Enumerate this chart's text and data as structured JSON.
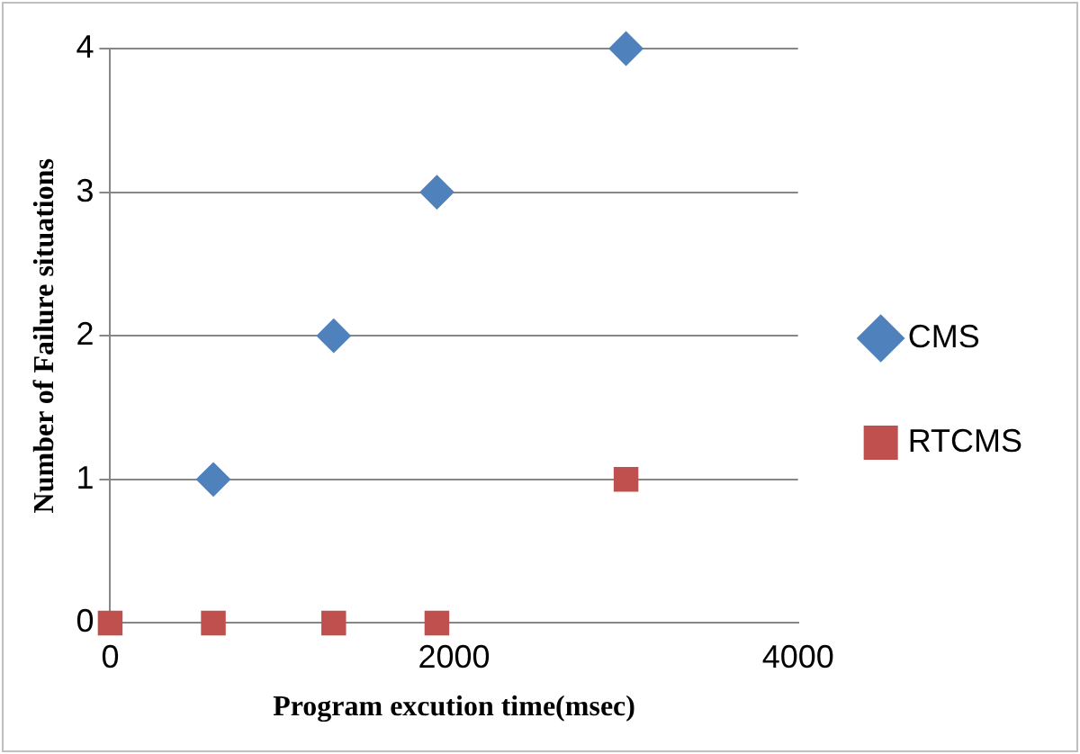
{
  "chart_data": {
    "type": "scatter",
    "xlabel": "Program excution time(msec)",
    "ylabel": "Number of Failure situations",
    "xlim": [
      0,
      4000
    ],
    "xticks": [
      0,
      2000,
      4000
    ],
    "ylim": [
      0,
      4
    ],
    "yticks": [
      0,
      1,
      2,
      3,
      4
    ],
    "grid": "y",
    "legend": "right",
    "series": [
      {
        "name": "CMS",
        "color": "#4f81bd",
        "marker": "diamond",
        "x": [
          600,
          1300,
          1900,
          3000
        ],
        "values": [
          1,
          2,
          3,
          4
        ]
      },
      {
        "name": "RTCMS",
        "color": "#c0504d",
        "marker": "square",
        "x": [
          0,
          600,
          1300,
          1900,
          3000
        ],
        "values": [
          0,
          0,
          0,
          0,
          1
        ]
      }
    ]
  }
}
